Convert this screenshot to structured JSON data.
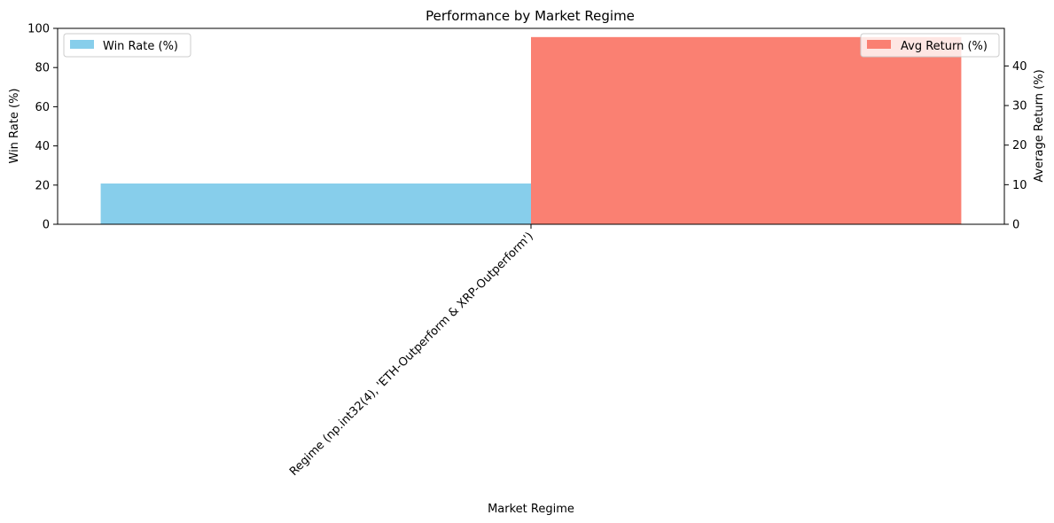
{
  "chart_data": {
    "type": "bar",
    "title": "Performance by Market Regime",
    "xlabel": "Market Regime",
    "ylabel_left": "Win Rate (%)",
    "ylabel_right": "Average Return (%)",
    "categories": [
      "Regime (np.int32(4), 'ETH-Outperform & XRP-Outperform')"
    ],
    "series": [
      {
        "name": "Win Rate (%)",
        "axis": "left",
        "color": "#87ceeb",
        "values": [
          20.8
        ]
      },
      {
        "name": "Avg Return (%)",
        "axis": "right",
        "color": "#fa8072",
        "values": [
          47.3
        ]
      }
    ],
    "ylim_left": [
      0,
      100
    ],
    "yticks_left": [
      0,
      20,
      40,
      60,
      80,
      100
    ],
    "ylim_right": [
      0,
      49.5
    ],
    "yticks_right": [
      0,
      10,
      20,
      30,
      40
    ],
    "grid": false,
    "legend_left": "upper left",
    "legend_right": "upper right"
  }
}
